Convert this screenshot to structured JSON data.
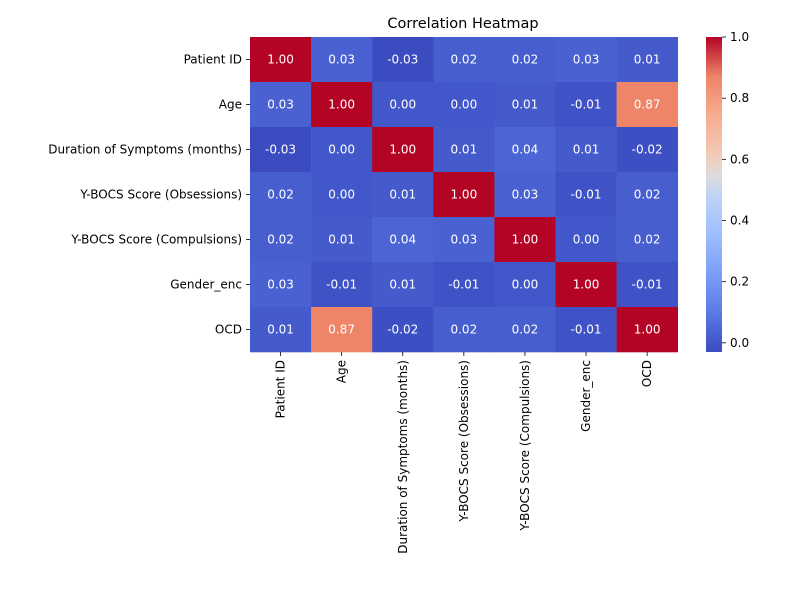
{
  "chart_data": {
    "type": "heatmap",
    "title": "Correlation Heatmap",
    "xlabel": "",
    "ylabel": "",
    "colormap": "coolwarm",
    "annotation_format": "0.00",
    "rows": [
      "Patient ID",
      "Age",
      "Duration of Symptoms (months)",
      "Y-BOCS Score (Obsessions)",
      "Y-BOCS Score (Compulsions)",
      "Gender_enc",
      "OCD"
    ],
    "columns": [
      "Patient ID",
      "Age",
      "Duration of Symptoms (months)",
      "Y-BOCS Score (Obsessions)",
      "Y-BOCS Score (Compulsions)",
      "Gender_enc",
      "OCD"
    ],
    "values": [
      [
        1.0,
        0.03,
        -0.03,
        0.02,
        0.02,
        0.03,
        0.01
      ],
      [
        0.03,
        1.0,
        -0.0,
        -0.0,
        0.01,
        -0.01,
        0.87
      ],
      [
        -0.03,
        -0.0,
        1.0,
        0.01,
        0.04,
        0.01,
        -0.02
      ],
      [
        0.02,
        -0.0,
        0.01,
        1.0,
        0.03,
        -0.01,
        0.02
      ],
      [
        0.02,
        0.01,
        0.04,
        0.03,
        1.0,
        0.0,
        0.02
      ],
      [
        0.03,
        -0.01,
        0.01,
        -0.01,
        0.0,
        1.0,
        -0.01
      ],
      [
        0.01,
        0.87,
        -0.02,
        0.02,
        0.02,
        -0.01,
        1.0
      ]
    ],
    "value_range": [
      -0.03,
      1.0
    ],
    "colorbar": {
      "ticks": [
        1.0,
        0.8,
        0.6,
        0.4,
        0.2,
        0.0
      ],
      "tick_labels": [
        "1.0",
        "0.8",
        "0.6",
        "0.4",
        "0.2",
        "0.0"
      ]
    }
  }
}
